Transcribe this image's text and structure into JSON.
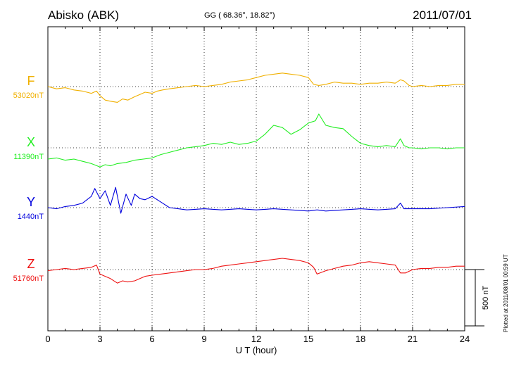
{
  "header": {
    "station": "Abisko (ABK)",
    "coords": "GG ( 68.36°,  18.82°)",
    "date": "2011/07/01"
  },
  "footer": {
    "plotted": "Plotted at 2011/08/01 00:59 UT"
  },
  "chart_data": {
    "type": "line",
    "xlabel": "U T (hour)",
    "xlim": [
      0,
      24
    ],
    "xticks": [
      0,
      3,
      6,
      9,
      12,
      15,
      18,
      21,
      24
    ],
    "scale_bar": {
      "label": "500 nT",
      "value_nT": 500
    },
    "grid": true,
    "series": [
      {
        "name": "F",
        "baseline_label": "53020nT",
        "baseline_nT": 53020,
        "color": "#f0b000",
        "x": [
          0,
          0.5,
          1,
          1.5,
          2,
          2.5,
          2.8,
          3,
          3.3,
          3.6,
          4,
          4.3,
          4.6,
          5,
          5.3,
          5.6,
          6,
          6.3,
          6.6,
          7,
          7.5,
          8,
          8.5,
          9,
          9.5,
          10,
          10.5,
          11,
          11.5,
          12,
          12.5,
          13,
          13.5,
          14,
          14.5,
          15,
          15.3,
          15.6,
          16,
          16.5,
          17,
          17.5,
          18,
          18.5,
          19,
          19.5,
          20,
          20.3,
          20.5,
          20.8,
          21,
          21.5,
          22,
          22.5,
          23,
          23.5,
          24
        ],
        "y": [
          0,
          -20,
          -10,
          -30,
          -40,
          -60,
          -40,
          -80,
          -120,
          -130,
          -140,
          -110,
          -120,
          -90,
          -70,
          -50,
          -60,
          -40,
          -30,
          -20,
          -10,
          0,
          10,
          0,
          10,
          20,
          40,
          50,
          60,
          80,
          100,
          110,
          120,
          110,
          100,
          80,
          20,
          10,
          20,
          40,
          30,
          30,
          20,
          30,
          30,
          40,
          30,
          60,
          50,
          10,
          0,
          10,
          0,
          10,
          10,
          20,
          20
        ]
      },
      {
        "name": "X",
        "baseline_label": "11390nT",
        "baseline_nT": 11390,
        "color": "#22ee22",
        "x": [
          0,
          0.5,
          1,
          1.5,
          2,
          2.5,
          3,
          3.3,
          3.6,
          4,
          4.5,
          5,
          5.5,
          6,
          6.5,
          7,
          7.5,
          8,
          8.5,
          9,
          9.5,
          10,
          10.5,
          11,
          11.5,
          12,
          12.5,
          13,
          13.5,
          14,
          14.5,
          15,
          15.4,
          15.6,
          15.8,
          16,
          16.5,
          17,
          17.5,
          18,
          18.5,
          19,
          19.5,
          20,
          20.3,
          20.5,
          20.8,
          21,
          21.5,
          22,
          22.5,
          23,
          23.5,
          24
        ],
        "y": [
          -100,
          -90,
          -110,
          -100,
          -120,
          -140,
          -170,
          -150,
          -160,
          -140,
          -130,
          -110,
          -100,
          -90,
          -60,
          -40,
          -20,
          0,
          10,
          20,
          40,
          30,
          50,
          30,
          40,
          60,
          120,
          200,
          180,
          120,
          160,
          220,
          240,
          300,
          250,
          200,
          180,
          170,
          100,
          40,
          20,
          10,
          20,
          10,
          80,
          20,
          0,
          0,
          -10,
          0,
          0,
          -10,
          0,
          0
        ]
      },
      {
        "name": "Y",
        "baseline_label": "1440nT",
        "baseline_nT": 1440,
        "color": "#0000dd",
        "x": [
          0,
          0.5,
          1,
          1.5,
          2,
          2.5,
          2.7,
          3,
          3.3,
          3.6,
          3.9,
          4.2,
          4.5,
          4.8,
          5,
          5.3,
          5.6,
          6,
          6.3,
          6.6,
          7,
          7.5,
          8,
          9,
          10,
          11,
          12,
          13,
          14,
          15,
          15.5,
          16,
          17,
          18,
          19,
          20,
          20.3,
          20.5,
          21,
          22,
          23,
          24
        ],
        "y": [
          0,
          -10,
          10,
          20,
          40,
          100,
          170,
          80,
          150,
          20,
          180,
          -50,
          120,
          20,
          120,
          80,
          70,
          100,
          70,
          40,
          0,
          -10,
          -20,
          -10,
          -20,
          -10,
          -20,
          -10,
          -20,
          -30,
          -20,
          -30,
          -20,
          -10,
          -20,
          -10,
          40,
          -10,
          -10,
          -10,
          0,
          10
        ]
      },
      {
        "name": "Z",
        "baseline_label": "51760nT",
        "baseline_nT": 51760,
        "color": "#ee1111",
        "x": [
          0,
          0.5,
          1,
          1.5,
          2,
          2.5,
          2.8,
          3,
          3.3,
          3.6,
          4,
          4.3,
          4.6,
          5,
          5.3,
          5.6,
          6,
          6.5,
          7,
          7.5,
          8,
          8.5,
          9,
          9.5,
          10,
          10.5,
          11,
          11.5,
          12,
          12.5,
          13,
          13.5,
          14,
          14.5,
          15,
          15.3,
          15.5,
          16,
          16.5,
          17,
          17.5,
          18,
          18.5,
          19,
          19.5,
          20,
          20.3,
          20.6,
          21,
          21.5,
          22,
          22.5,
          23,
          23.5,
          24
        ],
        "y": [
          -10,
          0,
          10,
          0,
          10,
          20,
          40,
          -40,
          -60,
          -80,
          -120,
          -100,
          -110,
          -100,
          -80,
          -60,
          -50,
          -40,
          -30,
          -20,
          -10,
          0,
          0,
          10,
          30,
          40,
          50,
          60,
          70,
          80,
          90,
          100,
          90,
          80,
          60,
          20,
          -40,
          -10,
          10,
          30,
          40,
          60,
          70,
          60,
          50,
          40,
          -30,
          -30,
          0,
          10,
          10,
          20,
          20,
          30,
          30
        ]
      }
    ]
  }
}
